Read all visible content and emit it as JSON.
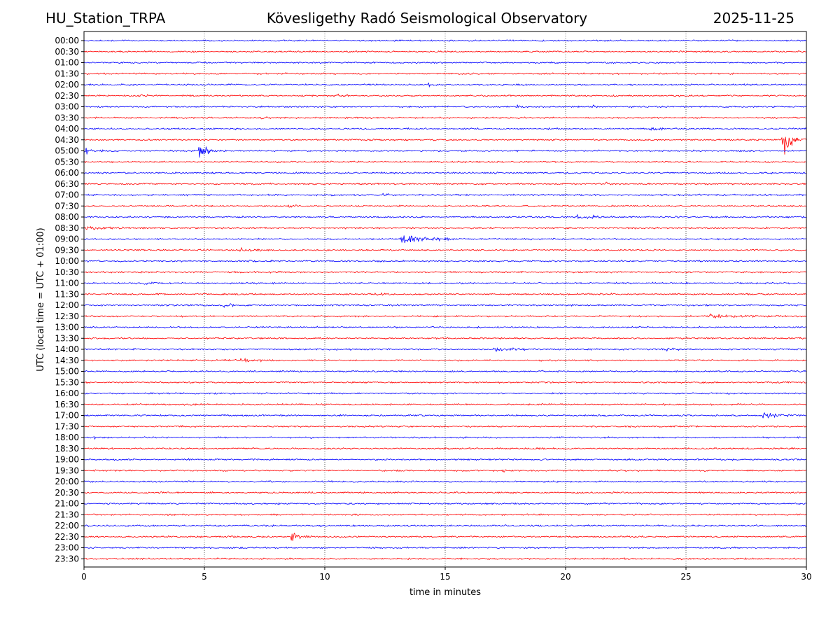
{
  "header": {
    "station": "HU_Station_TRPA",
    "observatory": "Kövesligethy Radó Seismological Observatory",
    "date": "2025-11-25"
  },
  "chart_data": {
    "type": "line",
    "title": "Kövesligethy Radó Seismological Observatory",
    "xlabel": "time in minutes",
    "ylabel": "UTC (local time = UTC + 01:00)",
    "xlim": [
      0,
      30
    ],
    "xticks": [
      0,
      5,
      10,
      15,
      20,
      25,
      30
    ],
    "grid": "vertical dotted lines at 5-minute ticks",
    "colors": {
      "even_rows": "#0000ff",
      "odd_rows": "#ff0000"
    },
    "rows": [
      "00:00",
      "00:30",
      "01:00",
      "01:30",
      "02:00",
      "02:30",
      "03:00",
      "03:30",
      "04:00",
      "04:30",
      "05:00",
      "05:30",
      "06:00",
      "06:30",
      "07:00",
      "07:30",
      "08:00",
      "08:30",
      "09:00",
      "09:30",
      "10:00",
      "10:30",
      "11:00",
      "11:30",
      "12:00",
      "12:30",
      "13:00",
      "13:30",
      "14:00",
      "14:30",
      "15:00",
      "15:30",
      "16:00",
      "16:30",
      "17:00",
      "17:30",
      "18:00",
      "18:30",
      "19:00",
      "19:30",
      "20:00",
      "20:30",
      "21:00",
      "21:30",
      "22:00",
      "22:30",
      "23:00",
      "23:30"
    ],
    "events": [
      {
        "row": "02:00",
        "minute": 14.3,
        "amplitude": 0.35,
        "duration": 0.4
      },
      {
        "row": "02:30",
        "minute": 2.3,
        "amplitude": 0.3,
        "duration": 0.5
      },
      {
        "row": "02:30",
        "minute": 10.5,
        "amplitude": 0.2,
        "duration": 0.7
      },
      {
        "row": "03:00",
        "minute": 18.0,
        "amplitude": 0.9,
        "duration": 0.3
      },
      {
        "row": "03:00",
        "minute": 21.1,
        "amplitude": 0.4,
        "duration": 0.3
      },
      {
        "row": "03:30",
        "minute": 7.4,
        "amplitude": 0.35,
        "duration": 0.3
      },
      {
        "row": "04:00",
        "minute": 23.5,
        "amplitude": 0.3,
        "duration": 1.2
      },
      {
        "row": "04:30",
        "minute": 29.0,
        "amplitude": 2.8,
        "duration": 1.0
      },
      {
        "row": "05:00",
        "minute": 0.0,
        "amplitude": 0.4,
        "duration": 1.2
      },
      {
        "row": "05:00",
        "minute": 4.8,
        "amplitude": 1.6,
        "duration": 0.8
      },
      {
        "row": "06:30",
        "minute": 21.7,
        "amplitude": 0.3,
        "duration": 0.3
      },
      {
        "row": "07:00",
        "minute": 12.4,
        "amplitude": 0.2,
        "duration": 0.8
      },
      {
        "row": "07:30",
        "minute": 8.5,
        "amplitude": 0.3,
        "duration": 0.6
      },
      {
        "row": "08:00",
        "minute": 20.5,
        "amplitude": 0.35,
        "duration": 1.6
      },
      {
        "row": "08:30",
        "minute": 0.0,
        "amplitude": 0.3,
        "duration": 2.0
      },
      {
        "row": "09:00",
        "minute": 13.2,
        "amplitude": 1.2,
        "duration": 2.2
      },
      {
        "row": "09:30",
        "minute": 6.5,
        "amplitude": 0.2,
        "duration": 1.2
      },
      {
        "row": "10:00",
        "minute": 6.8,
        "amplitude": 0.2,
        "duration": 0.6
      },
      {
        "row": "11:00",
        "minute": 2.5,
        "amplitude": 0.25,
        "duration": 1.0
      },
      {
        "row": "11:30",
        "minute": 12.0,
        "amplitude": 0.2,
        "duration": 1.0
      },
      {
        "row": "12:00",
        "minute": 5.8,
        "amplitude": 0.4,
        "duration": 0.6
      },
      {
        "row": "12:30",
        "minute": 26.0,
        "amplitude": 0.3,
        "duration": 4.0
      },
      {
        "row": "14:00",
        "minute": 17.0,
        "amplitude": 0.3,
        "duration": 1.8
      },
      {
        "row": "14:00",
        "minute": 24.0,
        "amplitude": 0.25,
        "duration": 1.5
      },
      {
        "row": "14:30",
        "minute": 6.5,
        "amplitude": 0.25,
        "duration": 1.8
      },
      {
        "row": "17:00",
        "minute": 28.2,
        "amplitude": 0.35,
        "duration": 1.8
      },
      {
        "row": "18:00",
        "minute": 0.4,
        "amplitude": 0.3,
        "duration": 0.3
      },
      {
        "row": "19:00",
        "minute": 4.3,
        "amplitude": 0.2,
        "duration": 0.6
      },
      {
        "row": "19:30",
        "minute": 17.4,
        "amplitude": 0.3,
        "duration": 0.3
      },
      {
        "row": "22:30",
        "minute": 8.6,
        "amplitude": 1.0,
        "duration": 1.0
      },
      {
        "row": "23:00",
        "minute": 6.5,
        "amplitude": 0.25,
        "duration": 0.1
      }
    ]
  }
}
